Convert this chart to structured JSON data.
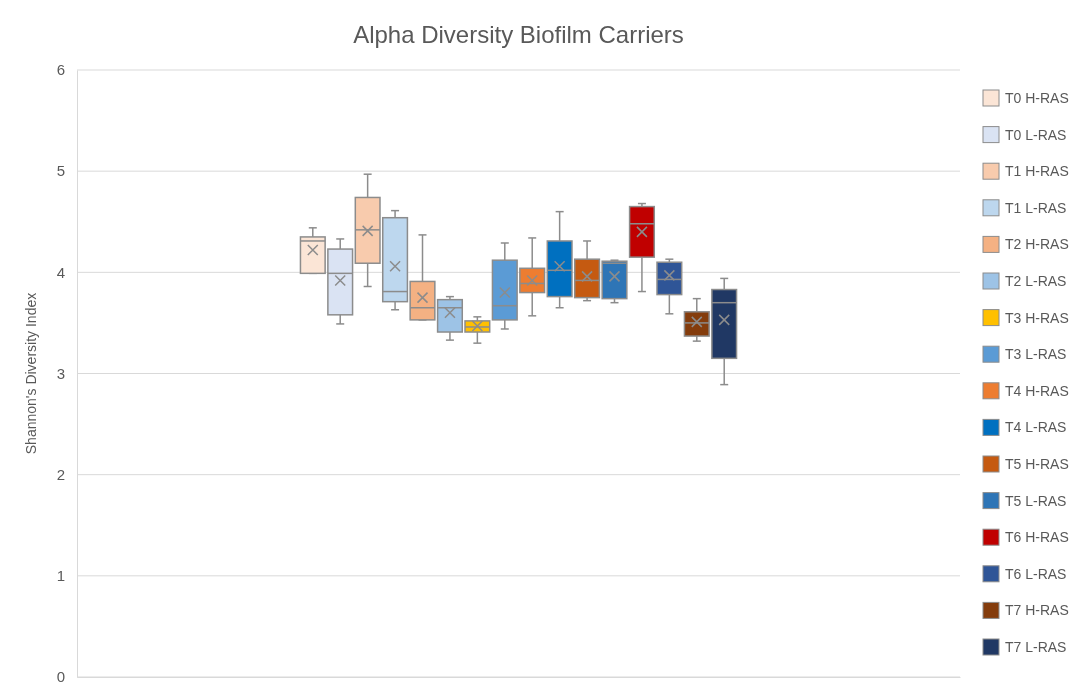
{
  "chart_data": {
    "type": "box",
    "title": "Alpha Diversity Biofilm Carriers",
    "ylabel": "Shannon's Diversity Index",
    "categories": [
      null
    ],
    "ylim": [
      0,
      6
    ],
    "yticks": [
      0,
      1,
      2,
      3,
      4,
      5,
      6
    ],
    "grid": "y",
    "legend": "right",
    "series": [
      {
        "name": "T0 H-RAS",
        "color": "#fbe5d6",
        "boxes": [
          {
            "low": 3.99,
            "q1": 3.99,
            "median": 4.31,
            "q3": 4.35,
            "high": 4.44,
            "mean": 4.22
          }
        ]
      },
      {
        "name": "T0 L-RAS",
        "color": "#dae3f3",
        "boxes": [
          {
            "low": 3.49,
            "q1": 3.58,
            "median": 3.99,
            "q3": 4.23,
            "high": 4.33,
            "mean": 3.92
          }
        ]
      },
      {
        "name": "T1 H-RAS",
        "color": "#f8cbad",
        "boxes": [
          {
            "low": 3.86,
            "q1": 4.09,
            "median": 4.42,
            "q3": 4.74,
            "high": 4.97,
            "mean": 4.41
          }
        ]
      },
      {
        "name": "T1 L-RAS",
        "color": "#bdd7ee",
        "boxes": [
          {
            "low": 3.63,
            "q1": 3.71,
            "median": 3.81,
            "q3": 4.54,
            "high": 4.61,
            "mean": 4.06
          }
        ]
      },
      {
        "name": "T2 H-RAS",
        "color": "#f4b183",
        "boxes": [
          {
            "low": 3.53,
            "q1": 3.53,
            "median": 3.65,
            "q3": 3.91,
            "high": 4.37,
            "mean": 3.75
          }
        ]
      },
      {
        "name": "T2 L-RAS",
        "color": "#9dc3e6",
        "boxes": [
          {
            "low": 3.33,
            "q1": 3.41,
            "median": 3.65,
            "q3": 3.73,
            "high": 3.76,
            "mean": 3.6
          }
        ]
      },
      {
        "name": "T3 H-RAS",
        "color": "#ffc000",
        "boxes": [
          {
            "low": 3.3,
            "q1": 3.41,
            "median": 3.46,
            "q3": 3.52,
            "high": 3.56,
            "mean": 3.47
          }
        ]
      },
      {
        "name": "T3 L-RAS",
        "color": "#5b9bd5",
        "boxes": [
          {
            "low": 3.44,
            "q1": 3.53,
            "median": 3.67,
            "q3": 4.12,
            "high": 4.29,
            "mean": 3.8
          }
        ]
      },
      {
        "name": "T4 H-RAS",
        "color": "#ed7d31",
        "boxes": [
          {
            "low": 3.57,
            "q1": 3.8,
            "median": 3.89,
            "q3": 4.04,
            "high": 4.34,
            "mean": 3.92
          }
        ]
      },
      {
        "name": "T4 L-RAS",
        "color": "#0070c0",
        "boxes": [
          {
            "low": 3.65,
            "q1": 3.76,
            "median": 4.02,
            "q3": 4.31,
            "high": 4.6,
            "mean": 4.06
          }
        ]
      },
      {
        "name": "T5 H-RAS",
        "color": "#c55a11",
        "boxes": [
          {
            "low": 3.72,
            "q1": 3.75,
            "median": 3.92,
            "q3": 4.13,
            "high": 4.31,
            "mean": 3.96
          }
        ]
      },
      {
        "name": "T5 L-RAS",
        "color": "#2e75b6",
        "boxes": [
          {
            "low": 3.7,
            "q1": 3.74,
            "median": 4.09,
            "q3": 4.11,
            "high": 4.12,
            "mean": 3.96
          }
        ]
      },
      {
        "name": "T6 H-RAS",
        "color": "#c00000",
        "boxes": [
          {
            "low": 3.81,
            "q1": 4.15,
            "median": 4.48,
            "q3": 4.65,
            "high": 4.68,
            "mean": 4.4
          }
        ]
      },
      {
        "name": "T6 L-RAS",
        "color": "#2f5597",
        "boxes": [
          {
            "low": 3.59,
            "q1": 3.78,
            "median": 3.93,
            "q3": 4.1,
            "high": 4.13,
            "mean": 3.97
          }
        ]
      },
      {
        "name": "T7 H-RAS",
        "color": "#843c0c",
        "boxes": [
          {
            "low": 3.32,
            "q1": 3.37,
            "median": 3.5,
            "q3": 3.61,
            "high": 3.74,
            "mean": 3.51
          }
        ]
      },
      {
        "name": "T7 L-RAS",
        "color": "#203864",
        "boxes": [
          {
            "low": 2.89,
            "q1": 3.15,
            "median": 3.7,
            "q3": 3.83,
            "high": 3.94,
            "mean": 3.53
          }
        ]
      }
    ]
  }
}
